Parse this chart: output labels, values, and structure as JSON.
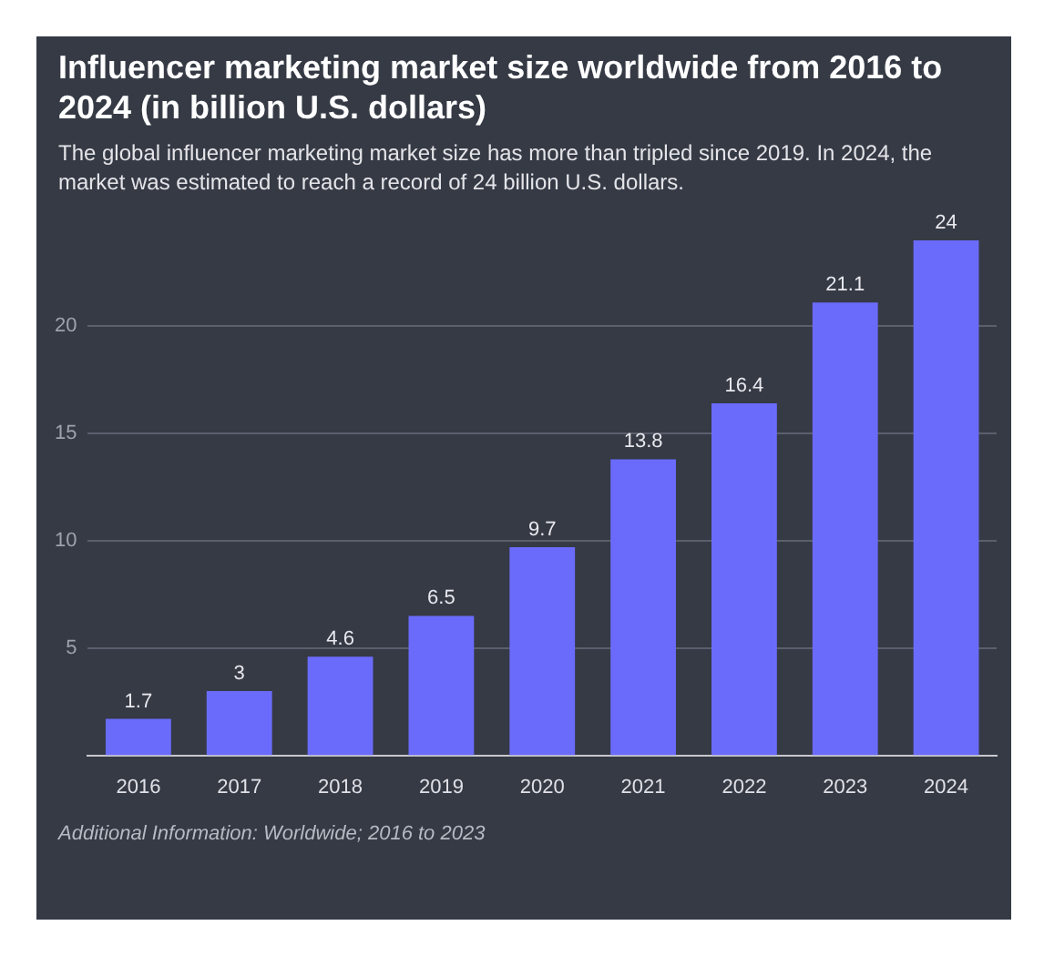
{
  "chart_data": {
    "type": "bar",
    "title": "Influencer marketing market size worldwide from 2016 to 2024 (in billion U.S. dollars)",
    "subtitle": "The global influencer marketing market size has more than tripled since 2019. In 2024, the market was estimated to reach a record of 24 billion U.S. dollars.",
    "categories": [
      "2016",
      "2017",
      "2018",
      "2019",
      "2020",
      "2021",
      "2022",
      "2023",
      "2024"
    ],
    "values": [
      1.7,
      3,
      4.6,
      6.5,
      9.7,
      13.8,
      16.4,
      21.1,
      24
    ],
    "color": "#6b6bfb",
    "ylim": [
      0,
      24
    ],
    "yticks": [
      5,
      10,
      15,
      20
    ],
    "grid": "y",
    "data_labels": true,
    "annotations": [
      "Additional Information: Worldwide; 2016 to 2023"
    ]
  }
}
